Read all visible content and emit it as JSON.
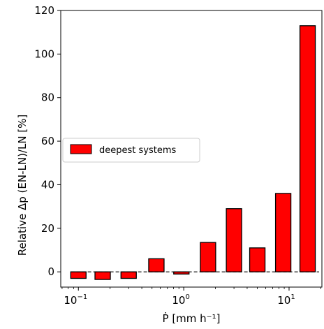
{
  "chart_data": {
    "type": "bar",
    "title": "",
    "xlabel": "Ṗ [mm h⁻¹]",
    "ylabel": "Relative Δp (EN-LN)/LN [%]",
    "xscale": "log",
    "xlim": [
      0.068,
      20.5
    ],
    "ylim": [
      -7,
      120
    ],
    "yticks": [
      0,
      20,
      40,
      60,
      80,
      100,
      120
    ],
    "xticks": [
      {
        "value": 0.1,
        "base": "10",
        "exp": "−1"
      },
      {
        "value": 1,
        "base": "10",
        "exp": "0"
      },
      {
        "value": 10,
        "base": "10",
        "exp": "1"
      }
    ],
    "bar_color": "#ff0000",
    "bar_edge_color": "#000000",
    "zero_line": "dashed",
    "legend": {
      "position": "center-left",
      "entries": [
        "deepest systems"
      ]
    },
    "series": [
      {
        "name": "deepest systems",
        "x": [
          0.1,
          0.17,
          0.3,
          0.55,
          0.95,
          1.7,
          3.0,
          5.0,
          8.8,
          15.0
        ],
        "values": [
          -3,
          -3.5,
          -3,
          6,
          -1,
          13.5,
          29,
          11,
          36,
          113
        ]
      }
    ]
  }
}
